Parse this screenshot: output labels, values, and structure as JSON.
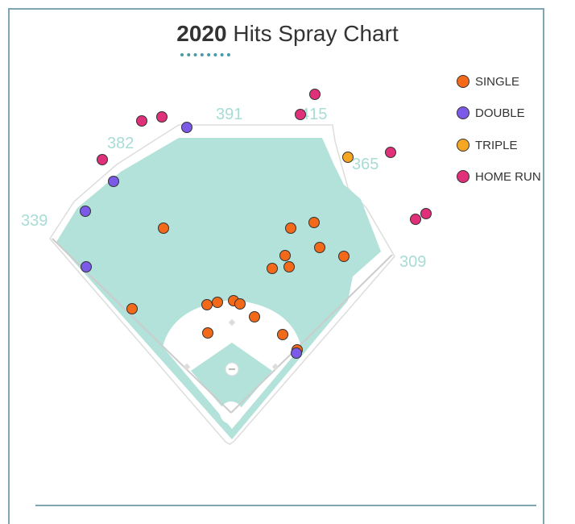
{
  "title": {
    "year": "2020",
    "rest": " Hits Spray Chart"
  },
  "colors": {
    "grass": "#b2e2d9",
    "single": "#f2691a",
    "double": "#7b5ae8",
    "triple": "#f5a623",
    "home_run": "#e0307a",
    "distance": "#a8dcd5"
  },
  "legend": [
    {
      "key": "single",
      "label": "SINGLE"
    },
    {
      "key": "double",
      "label": "DOUBLE"
    },
    {
      "key": "triple",
      "label": "TRIPLE"
    },
    {
      "key": "home_run",
      "label": "HOME RUN"
    }
  ],
  "distances": [
    "339",
    "382",
    "391",
    "415",
    "365",
    "309"
  ],
  "chart_data": {
    "type": "scatter",
    "title": "2020 Hits Spray Chart",
    "series": [
      {
        "name": "SINGLE",
        "key": "single",
        "points": [
          [
            203,
            283
          ],
          [
            164,
            383
          ],
          [
            257,
            378
          ],
          [
            270,
            375
          ],
          [
            290,
            373
          ],
          [
            298,
            377
          ],
          [
            316,
            393
          ],
          [
            258,
            413
          ],
          [
            351,
            415
          ],
          [
            369,
            434
          ],
          [
            338,
            333
          ],
          [
            354,
            317
          ],
          [
            359,
            331
          ],
          [
            361,
            283
          ],
          [
            390,
            276
          ],
          [
            397,
            307
          ],
          [
            427,
            318
          ]
        ]
      },
      {
        "name": "DOUBLE",
        "key": "double",
        "points": [
          [
            232,
            158
          ],
          [
            141,
            225
          ],
          [
            106,
            262
          ],
          [
            107,
            331
          ],
          [
            368,
            438
          ]
        ]
      },
      {
        "name": "TRIPLE",
        "key": "triple",
        "points": [
          [
            432,
            195
          ]
        ]
      },
      {
        "name": "HOME RUN",
        "key": "home_run",
        "points": [
          [
            176,
            150
          ],
          [
            201,
            145
          ],
          [
            127,
            198
          ],
          [
            391,
            117
          ],
          [
            373,
            142
          ],
          [
            485,
            189
          ],
          [
            516,
            272
          ],
          [
            529,
            265
          ]
        ]
      }
    ]
  }
}
